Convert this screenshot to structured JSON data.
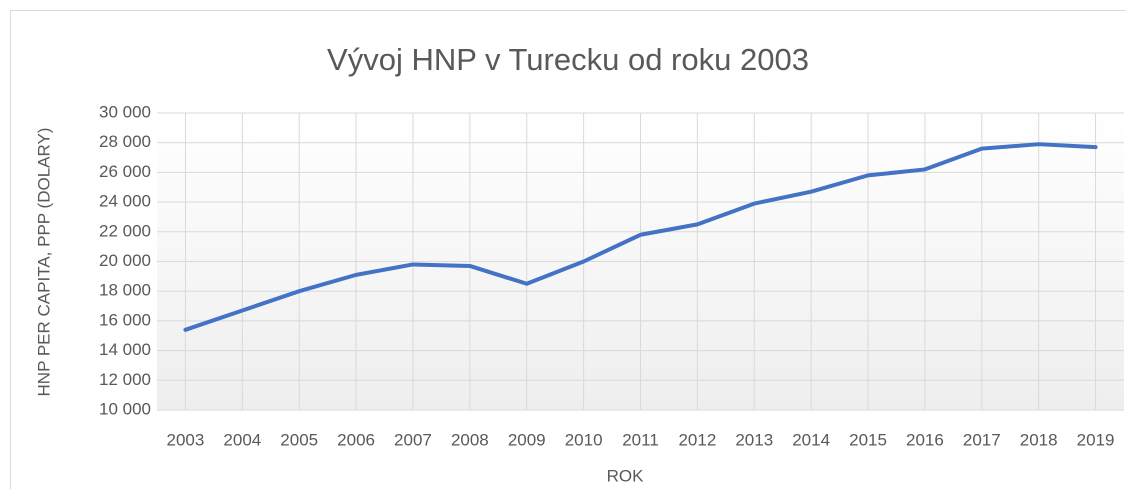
{
  "chart_data": {
    "type": "line",
    "title": "Vývoj HNP v Turecku od roku 2003",
    "x_label": "ROK",
    "y_label": "HNP PER CAPITA, PPP (DOLARY)",
    "categories": [
      "2003",
      "2004",
      "2005",
      "2006",
      "2007",
      "2008",
      "2009",
      "2010",
      "2011",
      "2012",
      "2013",
      "2014",
      "2015",
      "2016",
      "2017",
      "2018",
      "2019"
    ],
    "series": [
      {
        "name": "HNP per capita",
        "color": "#4472c4",
        "values": [
          15400,
          16700,
          18000,
          19100,
          19800,
          19700,
          18500,
          20000,
          21800,
          22500,
          23900,
          24700,
          25800,
          26200,
          27600,
          27900,
          27700
        ]
      }
    ],
    "ylim": [
      10000,
      30000
    ],
    "yticks": [
      {
        "value": 10000,
        "label": "10 000"
      },
      {
        "value": 12000,
        "label": "12 000"
      },
      {
        "value": 14000,
        "label": "14 000"
      },
      {
        "value": 16000,
        "label": "16 000"
      },
      {
        "value": 18000,
        "label": "18 000"
      },
      {
        "value": 20000,
        "label": "20 000"
      },
      {
        "value": 22000,
        "label": "22 000"
      },
      {
        "value": 24000,
        "label": "24 000"
      },
      {
        "value": 26000,
        "label": "26 000"
      },
      {
        "value": 28000,
        "label": "28 000"
      },
      {
        "value": 30000,
        "label": "30 000"
      }
    ],
    "grid": true
  }
}
